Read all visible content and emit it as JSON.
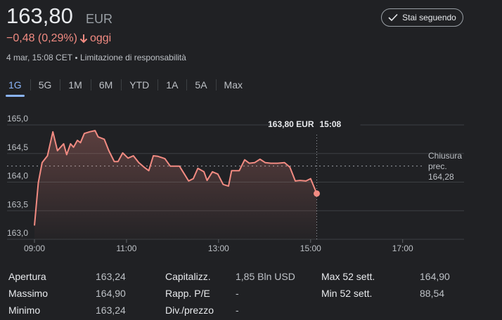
{
  "header": {
    "price": "163,80",
    "currency": "EUR",
    "change": "−0,48 (0,29%)",
    "period": "oggi",
    "timestamp": "4 mar, 15:08 CET",
    "disclaimer": "Limitazione di responsabilità",
    "follow_button": "Stai seguendo"
  },
  "tabs": [
    "1G",
    "5G",
    "1M",
    "6M",
    "YTD",
    "1A",
    "5A",
    "Max"
  ],
  "chart_data": {
    "type": "line",
    "color": "#f28b82",
    "x": [
      "09:00",
      "09:05",
      "09:10",
      "09:17",
      "09:24",
      "09:30",
      "09:38",
      "09:42",
      "09:47",
      "09:51",
      "09:56",
      "10:00",
      "10:05",
      "10:12",
      "10:19",
      "10:23",
      "10:31",
      "10:37",
      "10:44",
      "10:49",
      "10:55",
      "11:02",
      "11:09",
      "11:16",
      "11:23",
      "11:29",
      "11:35",
      "11:41",
      "11:50",
      "11:57",
      "12:09",
      "12:15",
      "12:21",
      "12:27",
      "12:33",
      "12:41",
      "12:45",
      "12:52",
      "12:59",
      "13:06",
      "13:13",
      "13:17",
      "13:27",
      "13:34",
      "13:40",
      "13:47",
      "13:54",
      "14:01",
      "14:08",
      "14:17",
      "14:26",
      "14:33",
      "14:40",
      "14:46",
      "14:54",
      "15:00",
      "15:08"
    ],
    "values": [
      163.24,
      163.99,
      164.34,
      164.46,
      164.88,
      164.55,
      164.67,
      164.48,
      164.67,
      164.61,
      164.73,
      164.69,
      164.85,
      164.88,
      164.9,
      164.79,
      164.75,
      164.55,
      164.36,
      164.36,
      164.51,
      164.42,
      164.46,
      164.34,
      164.26,
      164.2,
      164.46,
      164.45,
      164.41,
      164.28,
      164.28,
      164.15,
      164.02,
      164.06,
      164.24,
      164.18,
      164.03,
      164.18,
      164.14,
      163.96,
      163.93,
      164.2,
      164.2,
      164.39,
      164.33,
      164.34,
      164.4,
      164.34,
      164.33,
      164.33,
      164.34,
      164.26,
      164.02,
      164.03,
      164.02,
      164.06,
      163.8
    ],
    "xlim": [
      "09:00",
      "18:20"
    ],
    "xticks": [
      "09:00",
      "11:00",
      "13:00",
      "15:00",
      "17:00"
    ],
    "ylim": [
      163.0,
      165.0
    ],
    "yticks": [
      {
        "value": 163.0,
        "label": "163,0"
      },
      {
        "value": 163.5,
        "label": "163,5"
      },
      {
        "value": 164.0,
        "label": "164,0"
      },
      {
        "value": 164.5,
        "label": "164,5"
      },
      {
        "value": 165.0,
        "label": "165,0"
      }
    ],
    "grid": true,
    "previous_close": {
      "label": "Chiusura prec.",
      "value": 164.28,
      "value_label": "164,28"
    },
    "tooltip": {
      "value": "163,80 EUR",
      "time": "15:08"
    }
  },
  "stats": [
    [
      {
        "label": "Apertura",
        "value": "163,24"
      },
      {
        "label": "Massimo",
        "value": "164,90"
      },
      {
        "label": "Minimo",
        "value": "163,24"
      }
    ],
    [
      {
        "label": "Capitalizz.",
        "value": "1,85 Bln USD"
      },
      {
        "label": "Rapp. P/E",
        "value": "-"
      },
      {
        "label": "Div./prezzo",
        "value": "-"
      }
    ],
    [
      {
        "label": "Max 52 sett.",
        "value": "164,90"
      },
      {
        "label": "Min 52 sett.",
        "value": "88,54"
      }
    ]
  ]
}
